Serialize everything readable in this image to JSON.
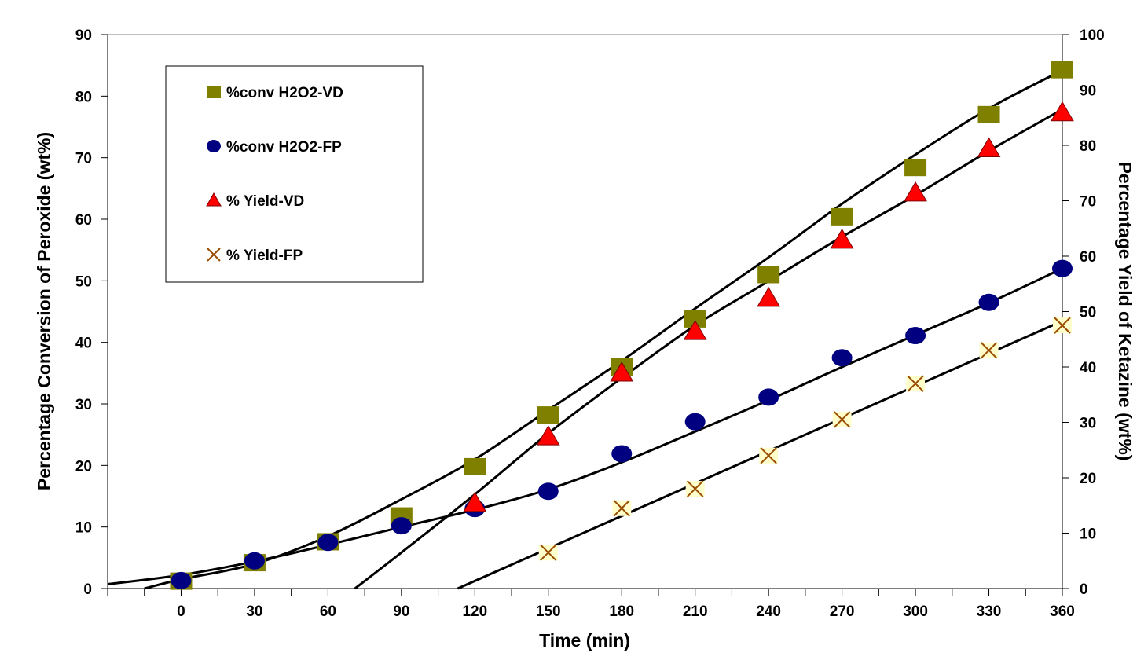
{
  "chart_data": {
    "type": "scatter",
    "title": "",
    "xlabel": "Time (min)",
    "ylabel": "Percentage Conversion of Peroxide (wt%)",
    "y2label": "Percentage Yield of Ketazine (wt%)",
    "xlim": [
      -30,
      360
    ],
    "ylim": [
      0,
      90
    ],
    "y2lim": [
      0,
      100
    ],
    "x_ticks": [
      0,
      30,
      60,
      90,
      120,
      150,
      180,
      210,
      240,
      270,
      300,
      330,
      360
    ],
    "y_ticks": [
      0,
      10,
      20,
      30,
      40,
      50,
      60,
      70,
      80,
      90
    ],
    "y2_ticks": [
      0,
      10,
      20,
      30,
      40,
      50,
      60,
      70,
      80,
      90,
      100
    ],
    "grid": false,
    "legend_position": "top-left",
    "series": [
      {
        "name": "%conv H2O2-VD",
        "axis": "left",
        "marker": "square",
        "color": "#808000",
        "x": [
          0,
          30,
          60,
          90,
          120,
          150,
          180,
          210,
          240,
          270,
          300,
          330,
          360
        ],
        "y": [
          1.2,
          4.2,
          7.6,
          11.8,
          19.8,
          28.2,
          36.0,
          43.8,
          51.0,
          60.4,
          68.4,
          77.0,
          84.3
        ]
      },
      {
        "name": "%conv H2O2-FP",
        "axis": "left",
        "marker": "circle",
        "color": "#000080",
        "x": [
          0,
          30,
          60,
          90,
          120,
          150,
          180,
          210,
          240,
          270,
          300,
          330,
          360
        ],
        "y": [
          1.3,
          4.5,
          7.5,
          10.2,
          13.0,
          15.8,
          21.9,
          27.1,
          31.1,
          37.5,
          41.1,
          46.5,
          52.0
        ]
      },
      {
        "name": "% Yield-VD",
        "axis": "right",
        "marker": "triangle",
        "color": "#ff0000",
        "x": [
          120,
          150,
          180,
          210,
          240,
          270,
          300,
          330,
          360
        ],
        "y": [
          15.5,
          27.5,
          39.0,
          46.5,
          52.5,
          63.0,
          71.5,
          79.5,
          86.0
        ]
      },
      {
        "name": "% Yield-FP",
        "axis": "right",
        "marker": "x",
        "color": "#994c00",
        "x": [
          150,
          180,
          210,
          240,
          270,
          300,
          330,
          360
        ],
        "y": [
          6.5,
          14.5,
          18.0,
          24.0,
          30.5,
          37.0,
          43.0,
          47.5
        ]
      }
    ],
    "trendlines": [
      {
        "series": "%conv H2O2-VD",
        "axis": "left",
        "x": [
          -15,
          0,
          30,
          60,
          90,
          120,
          150,
          180,
          210,
          240,
          270,
          300,
          330,
          360
        ],
        "y": [
          0,
          1.5,
          4.0,
          8.5,
          14.5,
          21.0,
          29.0,
          37.0,
          45.5,
          53.8,
          62.5,
          70.5,
          78.0,
          84.2
        ]
      },
      {
        "series": "%conv H2O2-FP",
        "axis": "left",
        "x": [
          -30,
          0,
          30,
          60,
          90,
          120,
          150,
          180,
          210,
          240,
          270,
          300,
          330,
          360
        ],
        "y": [
          0.7,
          2.2,
          4.4,
          7.1,
          10.0,
          12.8,
          16.1,
          20.5,
          25.5,
          30.6,
          36.0,
          41.2,
          46.4,
          52.0
        ]
      },
      {
        "series": "% Yield-VD",
        "axis": "right",
        "x": [
          71,
          90,
          120,
          150,
          180,
          210,
          240,
          270,
          300,
          330,
          360
        ],
        "y": [
          0,
          6.5,
          17.0,
          28.0,
          38.0,
          47.5,
          55.5,
          63.5,
          71.0,
          79.0,
          86.5
        ]
      },
      {
        "series": "% Yield-FP",
        "axis": "right",
        "x": [
          113,
          360
        ],
        "y": [
          0,
          48.3
        ]
      }
    ]
  }
}
